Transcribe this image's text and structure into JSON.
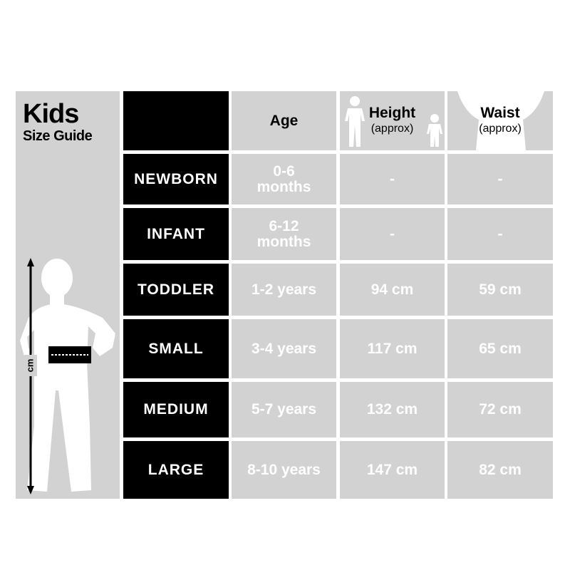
{
  "title": {
    "main": "Kids",
    "sub": "Size Guide"
  },
  "figure": {
    "unit_label": "cm"
  },
  "headers": {
    "age": "Age",
    "height": "Height",
    "height_note": "(approx)",
    "waist": "Waist",
    "waist_note": "(approx)"
  },
  "rows": [
    {
      "size": "NEWBORN",
      "age": "0-6 months",
      "height": "-",
      "waist": "-"
    },
    {
      "size": "INFANT",
      "age": "6-12 months",
      "height": "-",
      "waist": "-"
    },
    {
      "size": "TODDLER",
      "age": "1-2 years",
      "height": "94 cm",
      "waist": "59 cm"
    },
    {
      "size": "SMALL",
      "age": "3-4 years",
      "height": "117 cm",
      "waist": "65 cm"
    },
    {
      "size": "MEDIUM",
      "age": "5-7 years",
      "height": "132 cm",
      "waist": "72 cm"
    },
    {
      "size": "LARGE",
      "age": "8-10 years",
      "height": "147 cm",
      "waist": "82 cm"
    }
  ],
  "colors": {
    "panel": "#d2d2d2",
    "size_cell": "#000000",
    "text_on_gray": "#ffffff"
  }
}
